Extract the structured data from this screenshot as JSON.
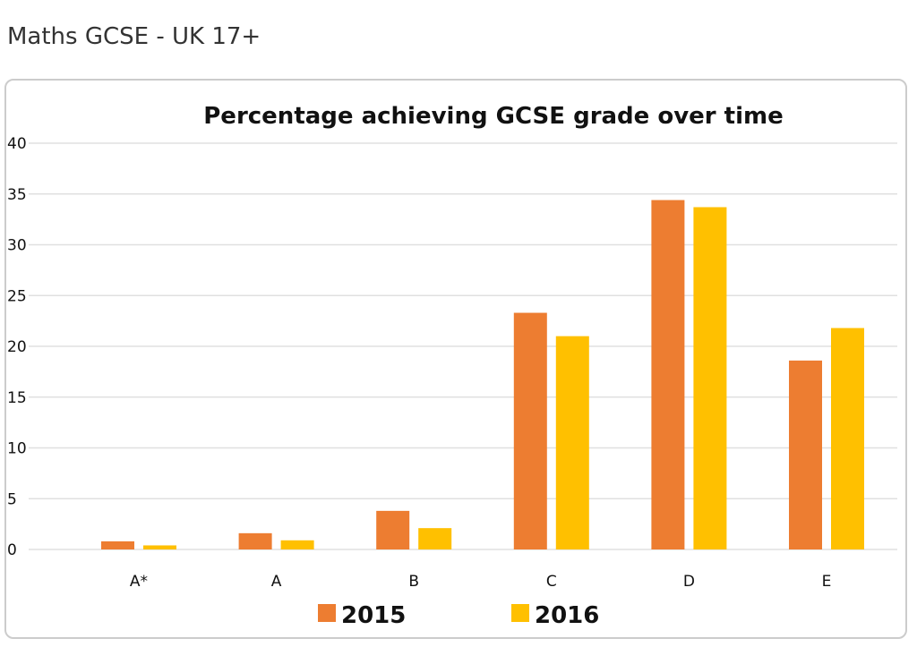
{
  "page_title": "Maths GCSE - UK 17+",
  "chart_data": {
    "type": "bar",
    "title": "Percentage achieving GCSE grade over time",
    "categories": [
      "A*",
      "A",
      "B",
      "C",
      "D",
      "E"
    ],
    "series": [
      {
        "name": "2015",
        "color": "#ed7d31",
        "values": [
          0.8,
          1.6,
          3.8,
          23.3,
          34.4,
          18.6
        ]
      },
      {
        "name": "2016",
        "color": "#ffc000",
        "values": [
          0.4,
          0.9,
          2.1,
          21.0,
          33.7,
          21.8
        ]
      }
    ],
    "ylim": [
      0,
      40
    ],
    "yticks": [
      "0",
      "5",
      "10",
      "15",
      "20",
      "25",
      "30",
      "35",
      "40"
    ],
    "grid": true,
    "legend": "bottom",
    "xlabel": "",
    "ylabel": ""
  }
}
